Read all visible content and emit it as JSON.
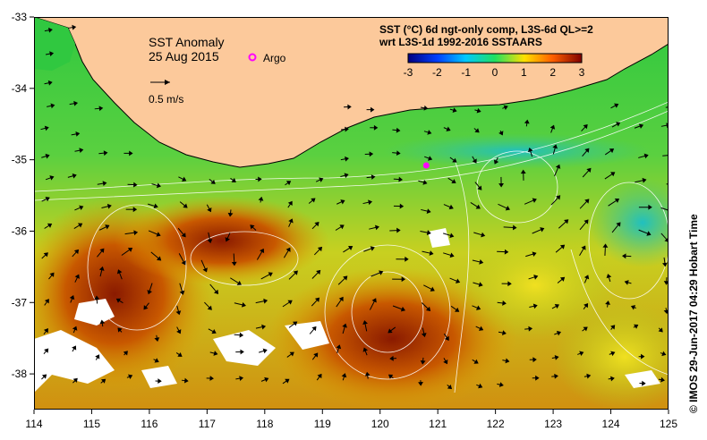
{
  "map": {
    "title_line1": "SST Anomaly",
    "title_line2": "25 Aug 2015",
    "argo_label": "Argo",
    "vector_scale_label": "0.5 m/s",
    "colorbar_title_line1": "SST (°C) 6d ngt-only comp, L3S-6d QL>=2",
    "colorbar_title_line2": "wrt L3S-1d 1992-2016 SSTAARS",
    "colorbar_ticks": [
      "-3",
      "-2",
      "-1",
      "0",
      "1",
      "2",
      "3"
    ],
    "colorbar_colors": [
      "#000080",
      "#0040ff",
      "#00c8ff",
      "#20e060",
      "#ffe000",
      "#ff6000",
      "#800000"
    ],
    "land_color": "#fcc99b",
    "argo_color": "#ff00ff",
    "footer": "© IMOS 29-Jun-2017 04:29 Hobart Time"
  },
  "axes": {
    "x_ticks": [
      "114",
      "115",
      "116",
      "117",
      "118",
      "119",
      "120",
      "121",
      "122",
      "123",
      "124",
      "125"
    ],
    "y_ticks": [
      "-33",
      "-34",
      "-35",
      "-36",
      "-37",
      "-38"
    ],
    "xlim": [
      114,
      125
    ],
    "ylim": [
      -38.5,
      -33
    ]
  },
  "argo_float": {
    "lon": 120.8,
    "lat": -35.08
  }
}
